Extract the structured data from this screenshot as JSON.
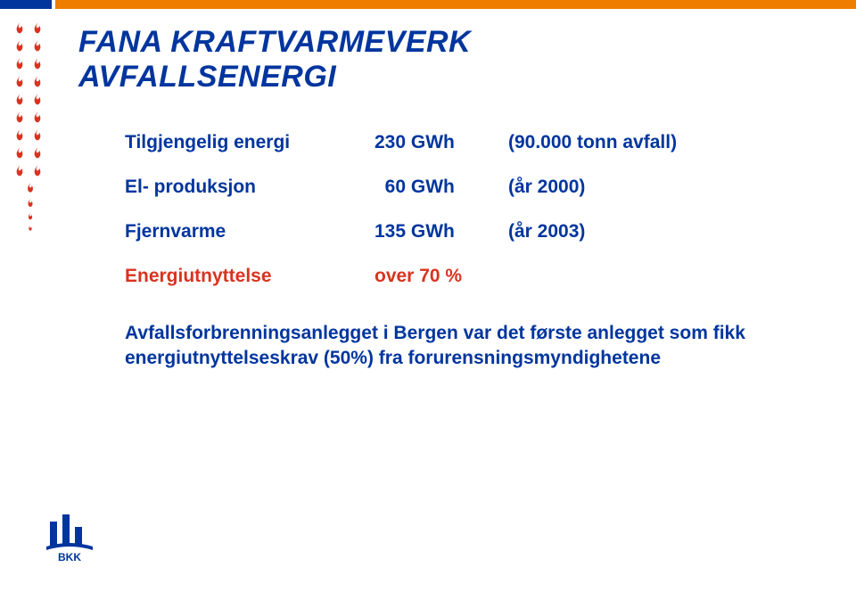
{
  "topbar": {
    "left_color": "#00359e",
    "right_color": "#ef7d00"
  },
  "flame_color": "#d9331f",
  "title": {
    "line1": "FANA KRAFTVARMEVERK",
    "line2": "AVFALLSENERGI",
    "color": "#00359e"
  },
  "table": {
    "text_color": "#00359e",
    "rows": [
      {
        "label": "Tilgjengelig energi",
        "value": "230 GWh",
        "note": "(90.000 tonn avfall)"
      },
      {
        "label": "El- produksjon",
        "value": "  60 GWh",
        "note": "(år 2000)"
      },
      {
        "label": "Fjernvarme",
        "value": "135 GWh",
        "note": "(år 2003)"
      }
    ],
    "utilization": {
      "label": "Energiutnyttelse",
      "value": "over 70 %",
      "color": "#d9331f"
    }
  },
  "footnote": "Avfallsforbrenningsanlegget i Bergen var det første anlegget som fikk energiutnyttelseskrav (50%) fra forurensningsmyndighetene",
  "logo": {
    "bar_color": "#00359e",
    "text": "BKK",
    "text_color": "#00359e"
  }
}
